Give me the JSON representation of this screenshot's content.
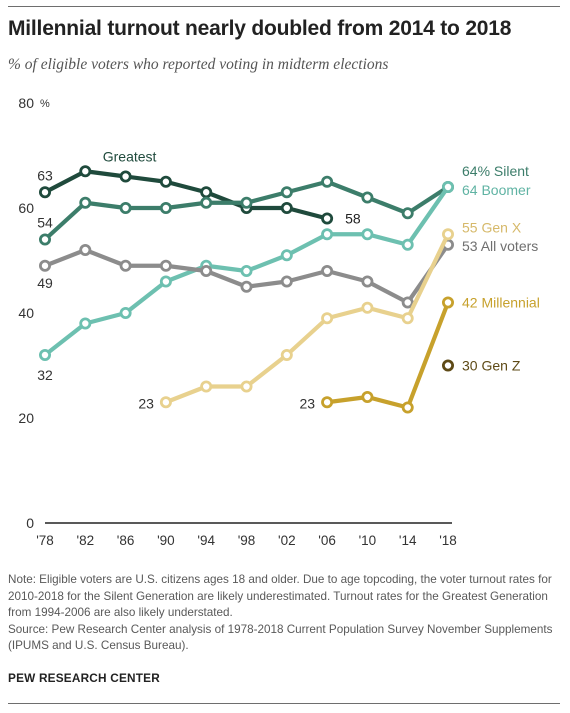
{
  "title": "Millennial turnout nearly doubled from 2014 to 2018",
  "subtitle": "% of eligible voters who reported voting in midterm elections",
  "notes": {
    "note": "Note: Eligible voters are U.S. citizens ages 18 and older. Due to age topcoding, the voter turnout rates for 2010-2018 for the Silent Generation are likely underestimated. Turnout rates for the Greatest Generation from 1994-2006 are also likely understated.",
    "source": "Source: Pew Research Center analysis of 1978-2018 Current Population Survey November Supplements (IPUMS and U.S. Census Bureau)."
  },
  "brand": "PEW RESEARCH CENTER",
  "chart_data": {
    "type": "line",
    "x": [
      "'78",
      "'82",
      "'86",
      "'90",
      "'94",
      "'98",
      "'02",
      "'06",
      "'10",
      "'14",
      "'18"
    ],
    "ylim": [
      0,
      80
    ],
    "yticks": [
      0,
      20,
      40,
      60,
      80
    ],
    "yunit": "%",
    "series": [
      {
        "name": "Greatest",
        "color": "#1f4a3c",
        "values": [
          63,
          67,
          66,
          65,
          63,
          60,
          60,
          58,
          null,
          null,
          null
        ],
        "labels": [
          {
            "index": 0,
            "text": "63"
          },
          {
            "index": 7,
            "text": "58"
          },
          {
            "index": 1,
            "text": "Greatest"
          }
        ]
      },
      {
        "name": "Silent",
        "color": "#3c7d6a",
        "values": [
          54,
          61,
          60,
          60,
          61,
          61,
          63,
          65,
          62,
          59,
          64
        ],
        "labels": [
          {
            "index": 0,
            "text": "54"
          },
          {
            "index": 10,
            "text": "64% Silent"
          }
        ]
      },
      {
        "name": "Boomer",
        "color": "#6dc0b0",
        "values": [
          32,
          38,
          40,
          46,
          49,
          48,
          51,
          55,
          55,
          53,
          64
        ],
        "labels": [
          {
            "index": 0,
            "text": "32"
          },
          {
            "index": 10,
            "text": "64 Boomer"
          }
        ]
      },
      {
        "name": "All voters",
        "color": "#8c8c8c",
        "values": [
          49,
          52,
          49,
          49,
          48,
          45,
          46,
          48,
          46,
          42,
          53
        ],
        "labels": [
          {
            "index": 0,
            "text": "49"
          },
          {
            "index": 10,
            "text": "53 All voters"
          }
        ]
      },
      {
        "name": "Gen X",
        "color": "#e8d18e",
        "values": [
          null,
          null,
          null,
          23,
          26,
          26,
          32,
          39,
          41,
          39,
          55
        ],
        "labels": [
          {
            "index": 3,
            "text": "23"
          },
          {
            "index": 10,
            "text": "55 Gen X"
          }
        ]
      },
      {
        "name": "Millennial",
        "color": "#c7a12c",
        "values": [
          null,
          null,
          null,
          null,
          null,
          null,
          null,
          23,
          24,
          22,
          42
        ],
        "labels": [
          {
            "index": 7,
            "text": "23"
          },
          {
            "index": 10,
            "text": "42 Millennial"
          }
        ]
      },
      {
        "name": "Gen Z",
        "color": "#5e4a16",
        "values": [
          null,
          null,
          null,
          null,
          null,
          null,
          null,
          null,
          null,
          null,
          30
        ],
        "labels": [
          {
            "index": 10,
            "text": "30 Gen Z"
          }
        ]
      }
    ]
  }
}
